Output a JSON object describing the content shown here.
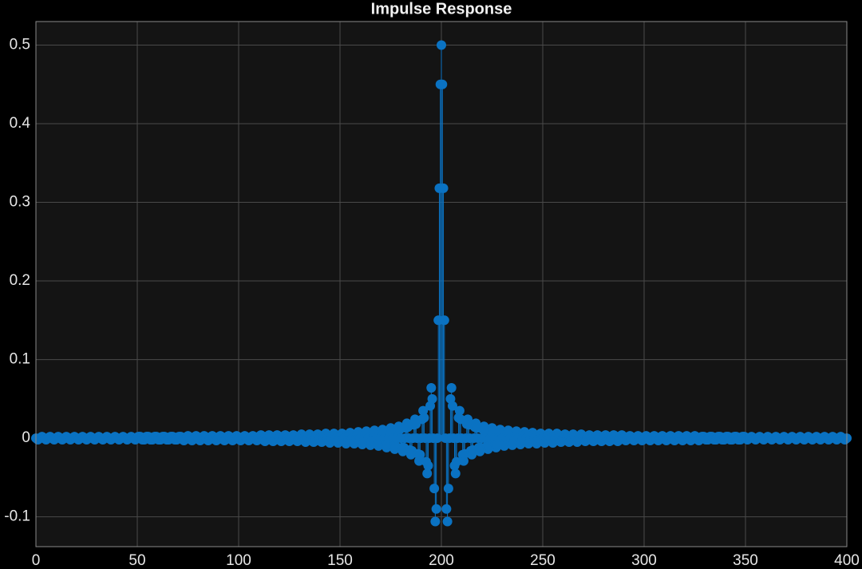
{
  "chart_data": {
    "type": "stem",
    "title": "Impulse Response",
    "color": "#0a72c2",
    "grid": true,
    "xlim": [
      0,
      400
    ],
    "xticks": [
      0,
      50,
      100,
      150,
      200,
      250,
      300,
      350,
      400
    ],
    "ylim": [
      -0.138,
      0.53
    ],
    "yticks": [
      -0.1,
      0,
      0.1,
      0.2,
      0.3,
      0.4,
      0.5
    ],
    "x": [
      0,
      0.5,
      1,
      1.5,
      2,
      2.5,
      3,
      3.5,
      4,
      4.5,
      5,
      5.5,
      6,
      6.5,
      7,
      7.5,
      8,
      8.5,
      9,
      9.5,
      10,
      10.5,
      11,
      11.5,
      12,
      12.5,
      13,
      13.5,
      14,
      14.5,
      15,
      15.5,
      16,
      16.5,
      17,
      17.5,
      18,
      18.5,
      19,
      19.5,
      20,
      20.5,
      21,
      21.5,
      22,
      22.5,
      23,
      23.5,
      24,
      24.5,
      25,
      25.5,
      26,
      26.5,
      27,
      27.5,
      28,
      28.5,
      29,
      29.5,
      30,
      30.5,
      31,
      31.5,
      32,
      32.5,
      33,
      33.5,
      34,
      34.5,
      35,
      35.5,
      36,
      36.5,
      37,
      37.5,
      38,
      38.5,
      39,
      39.5,
      40,
      40.5,
      41,
      41.5,
      42,
      42.5,
      43,
      43.5,
      44,
      44.5,
      45,
      45.5,
      46,
      46.5,
      47,
      47.5,
      48,
      48.5,
      49,
      49.5,
      50,
      50.5,
      51,
      51.5,
      52,
      52.5,
      53,
      53.5,
      54,
      54.5,
      55,
      55.5,
      56,
      56.5,
      57,
      57.5,
      58,
      58.5,
      59,
      59.5,
      60,
      60.5,
      61,
      61.5,
      62,
      62.5,
      63,
      63.5,
      64,
      64.5,
      65,
      65.5,
      66,
      66.5,
      67,
      67.5,
      68,
      68.5,
      69,
      69.5,
      70,
      70.5,
      71,
      71.5,
      72,
      72.5,
      73,
      73.5,
      74,
      74.5,
      75,
      75.5,
      76,
      76.5,
      77,
      77.5,
      78,
      78.5,
      79,
      79.5,
      80,
      80.5,
      81,
      81.5,
      82,
      82.5,
      83,
      83.5,
      84,
      84.5,
      85,
      85.5,
      86,
      86.5,
      87,
      87.5,
      88,
      88.5,
      89,
      89.5,
      90,
      90.5,
      91,
      91.5,
      92,
      92.5,
      93,
      93.5,
      94,
      94.5,
      95,
      95.5,
      96,
      96.5,
      97,
      97.5,
      98,
      98.5,
      99,
      99.5,
      100,
      100.5,
      101,
      101.5,
      102,
      102.5,
      103,
      103.5,
      104,
      104.5,
      105,
      105.5,
      106,
      106.5,
      107,
      107.5,
      108,
      108.5,
      109,
      109.5,
      110,
      110.5,
      111,
      111.5,
      112,
      112.5,
      113,
      113.5,
      114,
      114.5,
      115,
      115.5,
      116,
      116.5,
      117,
      117.5,
      118,
      118.5,
      119,
      119.5,
      120,
      120.5,
      121,
      121.5,
      122,
      122.5,
      123,
      123.5,
      124,
      124.5,
      125,
      125.5,
      126,
      126.5,
      127,
      127.5,
      128,
      128.5,
      129,
      129.5,
      130,
      130.5,
      131,
      131.5,
      132,
      132.5,
      133,
      133.5,
      134,
      134.5,
      135,
      135.5,
      136,
      136.5,
      137,
      137.5,
      138,
      138.5,
      139,
      139.5,
      140,
      140.5,
      141,
      141.5,
      142,
      142.5,
      143,
      143.5,
      144,
      144.5,
      145,
      145.5,
      146,
      146.5,
      147,
      147.5,
      148,
      148.5,
      149,
      149.5,
      150,
      150.5,
      151,
      151.5,
      152,
      152.5,
      153,
      153.5,
      154,
      154.5,
      155,
      155.5,
      156,
      156.5,
      157,
      157.5,
      158,
      158.5,
      159,
      159.5,
      160,
      160.5,
      161,
      161.5,
      162,
      162.5,
      163,
      163.5,
      164,
      164.5,
      165,
      165.5,
      166,
      166.5,
      167,
      167.5,
      168,
      168.5,
      169,
      169.5,
      170,
      170.5,
      171,
      171.5,
      172,
      172.5,
      173,
      173.5,
      174,
      174.5,
      175,
      175.5,
      176,
      176.5,
      177,
      177.5,
      178,
      178.5,
      179,
      179.5,
      180,
      180.5,
      181,
      181.5,
      182,
      182.5,
      183,
      183.5,
      184,
      184.5,
      185,
      185.5,
      186,
      186.5,
      187,
      187.5,
      188,
      188.5,
      189,
      189.5,
      190,
      190.5,
      191,
      191.5,
      192,
      192.5,
      193,
      193.5,
      194,
      194.5,
      195,
      195.5,
      196,
      196.5,
      197,
      197.5,
      198,
      198.5,
      199,
      199.5,
      200,
      200.5,
      201,
      201.5,
      202,
      202.5,
      203,
      203.5,
      204,
      204.5,
      205,
      205.5,
      206,
      206.5,
      207,
      207.5,
      208,
      208.5,
      209,
      209.5,
      210,
      210.5,
      211,
      211.5,
      212,
      212.5,
      213,
      213.5,
      214,
      214.5,
      215,
      215.5,
      216,
      216.5,
      217,
      217.5,
      218,
      218.5,
      219,
      219.5,
      220,
      220.5,
      221,
      221.5,
      222,
      222.5,
      223,
      223.5,
      224,
      224.5,
      225,
      225.5,
      226,
      226.5,
      227,
      227.5,
      228,
      228.5,
      229,
      229.5,
      230,
      230.5,
      231,
      231.5,
      232,
      232.5,
      233,
      233.5,
      234,
      234.5,
      235,
      235.5,
      236,
      236.5,
      237,
      237.5,
      238,
      238.5,
      239,
      239.5,
      240,
      240.5,
      241,
      241.5,
      242,
      242.5,
      243,
      243.5,
      244,
      244.5,
      245,
      245.5,
      246,
      246.5,
      247,
      247.5,
      248,
      248.5,
      249,
      249.5,
      250,
      250.5,
      251,
      251.5,
      252,
      252.5,
      253,
      253.5,
      254,
      254.5,
      255,
      255.5,
      256,
      256.5,
      257,
      257.5,
      258,
      258.5,
      259,
      259.5,
      260,
      260.5,
      261,
      261.5,
      262,
      262.5,
      263,
      263.5,
      264,
      264.5,
      265,
      265.5,
      266,
      266.5,
      267,
      267.5,
      268,
      268.5,
      269,
      269.5,
      270,
      270.5,
      271,
      271.5,
      272,
      272.5,
      273,
      273.5,
      274,
      274.5,
      275,
      275.5,
      276,
      276.5,
      277,
      277.5,
      278,
      278.5,
      279,
      279.5,
      280,
      280.5,
      281,
      281.5,
      282,
      282.5,
      283,
      283.5,
      284,
      284.5,
      285,
      285.5,
      286,
      286.5,
      287,
      287.5,
      288,
      288.5,
      289,
      289.5,
      290,
      290.5,
      291,
      291.5,
      292,
      292.5,
      293,
      293.5,
      294,
      294.5,
      295,
      295.5,
      296,
      296.5,
      297,
      297.5,
      298,
      298.5,
      299,
      299.5,
      300,
      300.5,
      301,
      301.5,
      302,
      302.5,
      303,
      303.5,
      304,
      304.5,
      305,
      305.5,
      306,
      306.5,
      307,
      307.5,
      308,
      308.5,
      309,
      309.5,
      310,
      310.5,
      311,
      311.5,
      312,
      312.5,
      313,
      313.5,
      314,
      314.5,
      315,
      315.5,
      316,
      316.5,
      317,
      317.5,
      318,
      318.5,
      319,
      319.5,
      320,
      320.5,
      321,
      321.5,
      322,
      322.5,
      323,
      323.5,
      324,
      324.5,
      325,
      325.5,
      326,
      326.5,
      327,
      327.5,
      328,
      328.5,
      329,
      329.5,
      330,
      330.5,
      331,
      331.5,
      332,
      332.5,
      333,
      333.5,
      334,
      334.5,
      335,
      335.5,
      336,
      336.5,
      337,
      337.5,
      338,
      338.5,
      339,
      339.5,
      340,
      340.5,
      341,
      341.5,
      342,
      342.5,
      343,
      343.5,
      344,
      344.5,
      345,
      345.5,
      346,
      346.5,
      347,
      347.5,
      348,
      348.5,
      349,
      349.5,
      350,
      350.5,
      351,
      351.5,
      352,
      352.5,
      353,
      353.5,
      354,
      354.5,
      355,
      355.5,
      356,
      356.5,
      357,
      357.5,
      358,
      358.5,
      359,
      359.5,
      360,
      360.5,
      361,
      361.5,
      362,
      362.5,
      363,
      363.5,
      364,
      364.5,
      365,
      365.5,
      366,
      366.5,
      367,
      367.5,
      368,
      368.5,
      369,
      369.5,
      370,
      370.5,
      371,
      371.5,
      372,
      372.5,
      373,
      373.5,
      374,
      374.5,
      375,
      375.5,
      376,
      376.5,
      377,
      377.5,
      378,
      378.5,
      379,
      379.5,
      380,
      380.5,
      381,
      381.5,
      382,
      382.5,
      383,
      383.5,
      384,
      384.5,
      385,
      385.5,
      386,
      386.5,
      387,
      387.5,
      388,
      388.5,
      389,
      389.5,
      390,
      390.5,
      391,
      391.5,
      392,
      392.5,
      393,
      393.5,
      394,
      394.5,
      395,
      395.5,
      396,
      396.5,
      397,
      397.5,
      398,
      398.5,
      399,
      399.5,
      400
    ],
    "values": [
      0,
      -0.001,
      -0.002,
      -0.001,
      0,
      0.001,
      0.002,
      0.001,
      0,
      -0.001,
      -0.002,
      -0.001,
      0,
      0.001,
      0.002,
      0.001,
      0,
      -0.001,
      -0.002,
      -0.001,
      0,
      0.001,
      0.002,
      0.001,
      0,
      -0.001,
      -0.002,
      -0.001,
      0,
      0.001,
      0.002,
      0.001,
      0,
      -0.001,
      -0.002,
      -0.001,
      0,
      0.001,
      0.002,
      0.001,
      0,
      -0.001,
      -0.002,
      -0.001,
      0,
      0.001,
      0.002,
      0.001,
      0,
      -0.001,
      -0.002,
      -0.001,
      0,
      0.001,
      0.002,
      0.001,
      0,
      -0.001,
      -0.002,
      -0.001,
      0,
      0.001,
      0.002,
      0.001,
      0,
      -0.001,
      -0.002,
      -0.001,
      0,
      0.001,
      0.002,
      0.001,
      0,
      -0.001,
      -0.002,
      -0.001,
      0,
      0.001,
      0.002,
      0.001,
      0,
      -0.001,
      -0.002,
      -0.001,
      0,
      0.001,
      0.002,
      0.001,
      0,
      -0.001,
      -0.002,
      -0.001,
      0,
      0.001,
      0.002,
      0.001,
      0,
      -0.001,
      -0.002,
      -0.001,
      0,
      0.002,
      0.002,
      0.002,
      0,
      -0.002,
      -0.002,
      -0.002,
      0,
      0.002,
      0.002,
      0.002,
      0,
      -0.002,
      -0.002,
      -0.002,
      0,
      0.002,
      0.002,
      0.002,
      0,
      -0.002,
      -0.002,
      -0.002,
      0,
      0.002,
      0.002,
      0.002,
      0,
      -0.002,
      -0.002,
      -0.002,
      0,
      0.002,
      0.002,
      0.002,
      0,
      -0.002,
      -0.002,
      -0.002,
      0,
      0.002,
      0.002,
      0.002,
      0,
      -0.002,
      -0.003,
      -0.002,
      0,
      0.002,
      0.003,
      0.002,
      0,
      -0.002,
      -0.003,
      -0.002,
      0,
      0.002,
      0.003,
      0.002,
      0,
      -0.002,
      -0.003,
      -0.002,
      0,
      0.002,
      0.003,
      0.002,
      0,
      -0.002,
      -0.003,
      -0.002,
      0,
      0.002,
      0.003,
      0.002,
      0,
      -0.002,
      -0.003,
      -0.002,
      0,
      0.002,
      0.003,
      0.002,
      0,
      -0.002,
      -0.003,
      -0.002,
      0,
      0.002,
      0.003,
      0.002,
      0,
      -0.002,
      -0.003,
      -0.002,
      0,
      0.002,
      0.003,
      0.002,
      0,
      -0.002,
      -0.003,
      -0.002,
      0,
      0.002,
      0.003,
      0.002,
      0,
      -0.002,
      -0.003,
      -0.002,
      0,
      0.002,
      0.003,
      0.002,
      0,
      -0.002,
      -0.003,
      -0.002,
      0,
      0.003,
      0.004,
      0.003,
      0,
      -0.003,
      -0.004,
      -0.003,
      0,
      0.003,
      0.004,
      0.003,
      0,
      -0.003,
      -0.004,
      -0.003,
      0,
      0.003,
      0.004,
      0.003,
      0,
      -0.003,
      -0.004,
      -0.003,
      0,
      0.003,
      0.004,
      0.003,
      0,
      -0.003,
      -0.004,
      -0.003,
      0,
      0.003,
      0.004,
      0.003,
      0,
      -0.003,
      -0.004,
      -0.003,
      0,
      0.003,
      0.005,
      0.003,
      0,
      -0.003,
      -0.005,
      -0.003,
      0,
      0.003,
      0.005,
      0.003,
      0,
      -0.004,
      -0.005,
      -0.004,
      0,
      0.004,
      0.005,
      0.004,
      0,
      -0.004,
      -0.005,
      -0.004,
      0,
      0.004,
      0.006,
      0.004,
      0,
      -0.004,
      -0.006,
      -0.004,
      0,
      0.004,
      0.006,
      0.004,
      0,
      -0.004,
      -0.006,
      -0.004,
      0,
      0.005,
      0.006,
      0.005,
      0,
      -0.005,
      -0.007,
      -0.005,
      0,
      0.005,
      0.007,
      0.005,
      0,
      -0.005,
      -0.007,
      -0.005,
      0,
      0.005,
      0.008,
      0.006,
      0,
      -0.006,
      -0.008,
      -0.006,
      0,
      0.006,
      0.009,
      0.006,
      0,
      -0.006,
      -0.009,
      -0.007,
      0,
      0.007,
      0.01,
      0.007,
      0,
      -0.007,
      -0.01,
      -0.007,
      0,
      0.008,
      0.011,
      0.008,
      0,
      -0.008,
      -0.012,
      -0.008,
      0,
      0.009,
      0.013,
      0.009,
      0,
      -0.01,
      -0.014,
      -0.01,
      0,
      0.01,
      0.015,
      0.011,
      0,
      -0.012,
      -0.017,
      -0.012,
      0,
      0.013,
      0.019,
      0.014,
      0,
      -0.015,
      -0.021,
      -0.016,
      0,
      0.017,
      0.024,
      0.018,
      0,
      -0.02,
      -0.029,
      -0.021,
      0,
      0.024,
      0.035,
      0.026,
      0,
      -0.03,
      -0.045,
      -0.035,
      0,
      0.041,
      0.064,
      0.05,
      0,
      -0.064,
      -0.106,
      -0.09,
      0,
      0.15,
      0.318,
      0.45,
      0.5,
      0.45,
      0.318,
      0.15,
      0,
      -0.09,
      -0.106,
      -0.064,
      0,
      0.05,
      0.064,
      0.041,
      0,
      -0.035,
      -0.045,
      -0.03,
      0,
      0.026,
      0.035,
      0.024,
      0,
      -0.021,
      -0.029,
      -0.02,
      0,
      0.018,
      0.024,
      0.017,
      0,
      -0.016,
      -0.021,
      -0.015,
      0,
      0.014,
      0.019,
      0.013,
      0,
      -0.012,
      -0.017,
      -0.012,
      0,
      0.011,
      0.015,
      0.01,
      0,
      -0.01,
      -0.014,
      -0.01,
      0,
      0.009,
      0.013,
      0.009,
      0,
      -0.008,
      -0.012,
      -0.008,
      0,
      0.008,
      0.011,
      0.008,
      0,
      -0.007,
      -0.01,
      -0.007,
      0,
      0.007,
      0.01,
      0.007,
      0,
      -0.007,
      -0.009,
      -0.006,
      0,
      0.006,
      0.009,
      0.006,
      0,
      -0.006,
      -0.008,
      -0.006,
      0,
      0.006,
      0.008,
      0.005,
      0,
      -0.005,
      -0.007,
      -0.005,
      0,
      0.005,
      0.007,
      0.005,
      0,
      -0.005,
      -0.007,
      -0.005,
      0,
      0.005,
      0.006,
      0.005,
      0,
      -0.004,
      -0.006,
      -0.004,
      0,
      0.004,
      0.006,
      0.004,
      0,
      -0.004,
      -0.006,
      -0.004,
      0,
      0.004,
      0.006,
      0.004,
      0,
      -0.004,
      -0.005,
      -0.004,
      0,
      0.004,
      0.005,
      0.004,
      0,
      -0.004,
      -0.005,
      -0.004,
      0,
      0.003,
      0.005,
      0.003,
      0,
      -0.003,
      -0.005,
      -0.003,
      0,
      0.003,
      0.005,
      0.003,
      0,
      -0.003,
      -0.004,
      -0.003,
      0,
      0.003,
      0.004,
      0.003,
      0,
      -0.003,
      -0.004,
      -0.003,
      0,
      0.003,
      0.004,
      0.003,
      0,
      -0.003,
      -0.004,
      -0.003,
      0,
      0.003,
      0.004,
      0.003,
      0,
      -0.003,
      -0.004,
      -0.003,
      0,
      0.003,
      0.004,
      0.003,
      0,
      -0.003,
      -0.004,
      -0.003,
      0,
      0.003,
      0.004,
      0.003,
      0,
      -0.002,
      -0.003,
      -0.002,
      0,
      0.002,
      0.003,
      0.002,
      0,
      -0.002,
      -0.003,
      -0.002,
      0,
      0.002,
      0.003,
      0.002,
      0,
      -0.002,
      -0.003,
      -0.002,
      0,
      0.002,
      0.003,
      0.002,
      0,
      -0.002,
      -0.003,
      -0.002,
      0,
      0.002,
      0.003,
      0.002,
      0,
      -0.002,
      -0.003,
      -0.002,
      0,
      0.002,
      0.003,
      0.002,
      0,
      -0.002,
      -0.003,
      -0.002,
      0,
      0.002,
      0.003,
      0.002,
      0,
      -0.002,
      -0.003,
      -0.002,
      0,
      0.002,
      0.003,
      0.002,
      0,
      -0.002,
      -0.003,
      -0.002,
      0,
      0.002,
      0.003,
      0.002,
      0,
      -0.002,
      -0.003,
      -0.002,
      0,
      0.002,
      0.003,
      0.002,
      0,
      -0.002,
      -0.003,
      -0.002,
      0,
      0.002,
      0.002,
      0.002,
      0,
      -0.002,
      -0.002,
      -0.002,
      0,
      0.002,
      0.002,
      0.002,
      0,
      -0.002,
      -0.002,
      -0.002,
      0,
      0.002,
      0.002,
      0.002,
      0,
      -0.002,
      -0.002,
      -0.002,
      0,
      0.002,
      0.002,
      0.002,
      0,
      -0.002,
      -0.002,
      -0.002,
      0,
      0.002,
      0.002,
      0.002,
      0,
      -0.002,
      -0.002,
      -0.002,
      0,
      0.002,
      0.002,
      0.002,
      0,
      -0.001,
      -0.002,
      -0.001,
      0,
      0.001,
      0.002,
      0.001,
      0,
      -0.001,
      -0.002,
      -0.001,
      0,
      0.001,
      0.002,
      0.001,
      0,
      -0.001,
      -0.002,
      -0.001,
      0,
      0.001,
      0.002,
      0.001,
      0,
      -0.001,
      -0.002,
      -0.001,
      0,
      0.001,
      0.002,
      0.001,
      0,
      -0.001,
      -0.002,
      -0.001,
      0,
      0.001,
      0.002,
      0.001,
      0,
      -0.001,
      -0.002,
      -0.001,
      0,
      0.001,
      0.002,
      0.001,
      0,
      -0.001,
      -0.002,
      -0.001,
      0,
      0.001,
      0.002,
      0.001,
      0,
      -0.001,
      -0.002,
      -0.001,
      0,
      0.001,
      0.002,
      0.001,
      0,
      -0.001,
      -0.002,
      -0.001,
      0,
      0.001,
      0.002,
      0.001,
      0,
      -0.001,
      -0.002,
      -0.001,
      0,
      0.001,
      0.002,
      0.001,
      0,
      -0.001,
      -0.002,
      -0.001,
      0,
      0.001,
      0.002,
      0.001,
      0,
      -0.001,
      -0.002,
      -0.001,
      0,
      0.001,
      0.002,
      0.001,
      0,
      -0.001,
      -0.002,
      -0.001,
      0
    ]
  }
}
